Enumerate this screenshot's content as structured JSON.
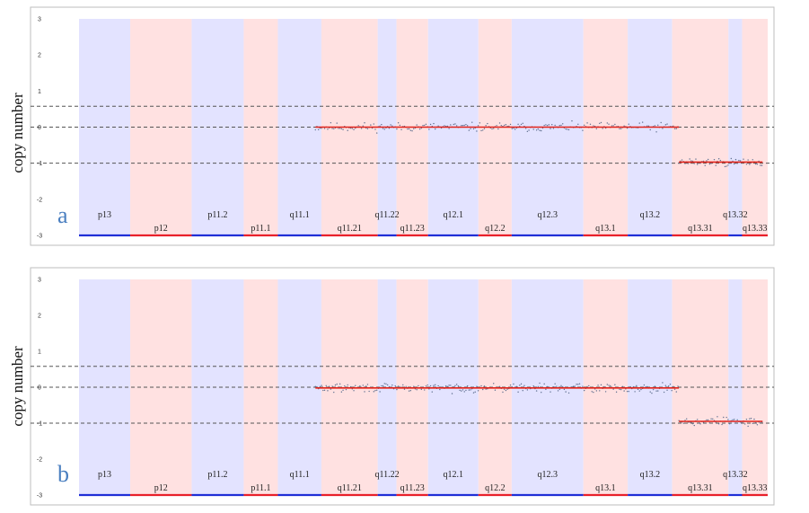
{
  "colors": {
    "band_blue": "#e3e3ff",
    "band_red": "#ffe1e1",
    "bar_blue": "#1f2fd6",
    "bar_red": "#e8202a",
    "segment": "#e2231a",
    "points": "#5f6f8f",
    "dashed": "#555555",
    "frame": "#bdbdbd",
    "panel_tag": "#4a7fc0"
  },
  "chart_data": [
    {
      "type": "scatter",
      "panel_label": "a",
      "ylabel": "copy number",
      "ylim": [
        -3,
        3
      ],
      "yticks": [
        "3",
        "2",
        "1",
        "0",
        "-1",
        "-2",
        "-3"
      ],
      "dashed_lines": [
        0.58,
        0,
        -1
      ],
      "bands": [
        {
          "name": "p13",
          "start": 0.0,
          "end": 6.0,
          "color": "blue"
        },
        {
          "name": "p12",
          "start": 6.0,
          "end": 13.2,
          "color": "red"
        },
        {
          "name": "p11.2",
          "start": 13.2,
          "end": 19.3,
          "color": "blue"
        },
        {
          "name": "p11.1",
          "start": 19.3,
          "end": 23.3,
          "color": "red"
        },
        {
          "name": "q11.1",
          "start": 23.3,
          "end": 28.4,
          "color": "blue"
        },
        {
          "name": "q11.21",
          "start": 28.4,
          "end": 35.0,
          "color": "red"
        },
        {
          "name": "q11.22",
          "start": 35.0,
          "end": 37.2,
          "color": "blue"
        },
        {
          "name": "q11.23",
          "start": 37.2,
          "end": 40.9,
          "color": "red"
        },
        {
          "name": "q12.1",
          "start": 40.9,
          "end": 46.8,
          "color": "blue"
        },
        {
          "name": "q12.2",
          "start": 46.8,
          "end": 50.7,
          "color": "red"
        },
        {
          "name": "q12.3",
          "start": 50.7,
          "end": 59.1,
          "color": "blue"
        },
        {
          "name": "q13.1",
          "start": 59.1,
          "end": 64.3,
          "color": "red"
        },
        {
          "name": "q13.2",
          "start": 64.3,
          "end": 69.5,
          "color": "blue"
        },
        {
          "name": "q13.31",
          "start": 69.5,
          "end": 76.1,
          "color": "red"
        },
        {
          "name": "q13.32",
          "start": 76.1,
          "end": 77.7,
          "color": "blue"
        },
        {
          "name": "q13.33",
          "start": 77.7,
          "end": 80.7,
          "color": "red"
        }
      ],
      "segments": [
        {
          "start": 27.7,
          "end": 70.3,
          "value": 0.0
        },
        {
          "start": 70.3,
          "end": 80.1,
          "value": -0.97
        }
      ],
      "points": {
        "seed": 11,
        "noise": 0.06,
        "step": 0.18
      }
    },
    {
      "type": "scatter",
      "panel_label": "b",
      "ylabel": "copy number",
      "ylim": [
        -3,
        3
      ],
      "yticks": [
        "3",
        "2",
        "1",
        "0",
        "-1",
        "-2",
        "-3"
      ],
      "dashed_lines": [
        0.58,
        0,
        -1
      ],
      "bands": [
        {
          "name": "p13",
          "start": 0.0,
          "end": 6.0,
          "color": "blue"
        },
        {
          "name": "p12",
          "start": 6.0,
          "end": 13.2,
          "color": "red"
        },
        {
          "name": "p11.2",
          "start": 13.2,
          "end": 19.3,
          "color": "blue"
        },
        {
          "name": "p11.1",
          "start": 19.3,
          "end": 23.3,
          "color": "red"
        },
        {
          "name": "q11.1",
          "start": 23.3,
          "end": 28.4,
          "color": "blue"
        },
        {
          "name": "q11.21",
          "start": 28.4,
          "end": 35.0,
          "color": "red"
        },
        {
          "name": "q11.22",
          "start": 35.0,
          "end": 37.2,
          "color": "blue"
        },
        {
          "name": "q11.23",
          "start": 37.2,
          "end": 40.9,
          "color": "red"
        },
        {
          "name": "q12.1",
          "start": 40.9,
          "end": 46.8,
          "color": "blue"
        },
        {
          "name": "q12.2",
          "start": 46.8,
          "end": 50.7,
          "color": "red"
        },
        {
          "name": "q12.3",
          "start": 50.7,
          "end": 59.1,
          "color": "blue"
        },
        {
          "name": "q13.1",
          "start": 59.1,
          "end": 64.3,
          "color": "red"
        },
        {
          "name": "q13.2",
          "start": 64.3,
          "end": 69.5,
          "color": "blue"
        },
        {
          "name": "q13.31",
          "start": 69.5,
          "end": 76.1,
          "color": "red"
        },
        {
          "name": "q13.32",
          "start": 76.1,
          "end": 77.7,
          "color": "blue"
        },
        {
          "name": "q13.33",
          "start": 77.7,
          "end": 80.7,
          "color": "red"
        }
      ],
      "segments": [
        {
          "start": 27.7,
          "end": 70.3,
          "value": -0.02
        },
        {
          "start": 70.3,
          "end": 80.1,
          "value": -0.95
        }
      ],
      "points": {
        "seed": 29,
        "noise": 0.06,
        "step": 0.18
      }
    }
  ]
}
